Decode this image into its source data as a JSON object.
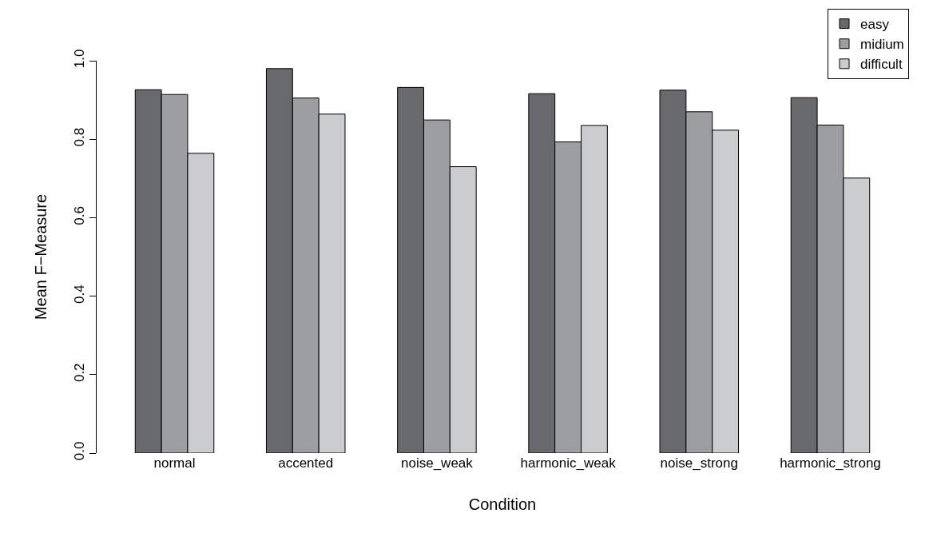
{
  "chart_data": {
    "type": "bar",
    "xlabel": "Condition",
    "ylabel": "Mean F−Measure",
    "categories": [
      "normal",
      "accented",
      "noise_weak",
      "harmonic_weak",
      "noise_strong",
      "harmonic_strong"
    ],
    "series": [
      {
        "name": "easy",
        "color": "#68696d",
        "values": [
          0.926,
          0.98,
          0.932,
          0.916,
          0.925,
          0.906
        ]
      },
      {
        "name": "midium",
        "color": "#9d9ea2",
        "values": [
          0.914,
          0.905,
          0.849,
          0.793,
          0.87,
          0.836
        ]
      },
      {
        "name": "difficult",
        "color": "#cbccce",
        "values": [
          0.764,
          0.864,
          0.73,
          0.835,
          0.823,
          0.701
        ]
      }
    ],
    "ylim": [
      0,
      1
    ],
    "yticks": [
      "0.0",
      0.2,
      0.4,
      0.6,
      0.8,
      "1.0"
    ],
    "grid": false,
    "legend": "top right"
  }
}
